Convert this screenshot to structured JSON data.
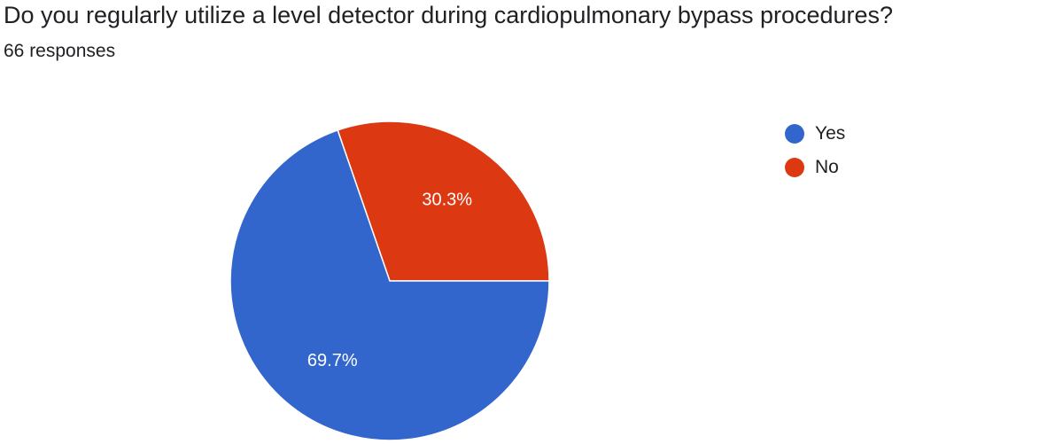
{
  "header": {
    "title": "Do you regularly utilize a level detector during cardiopulmonary bypass procedures?",
    "responses": "66 responses"
  },
  "chart_data": {
    "type": "pie",
    "title": "Do you regularly utilize a level detector during cardiopulmonary bypass procedures?",
    "subtitle": "66 responses",
    "slices": [
      {
        "label": "Yes",
        "value": 69.7,
        "display": "69.7%",
        "color": "#3366cc"
      },
      {
        "label": "No",
        "value": 30.3,
        "display": "30.3%",
        "color": "#dc3912"
      }
    ],
    "legend_position": "right"
  }
}
